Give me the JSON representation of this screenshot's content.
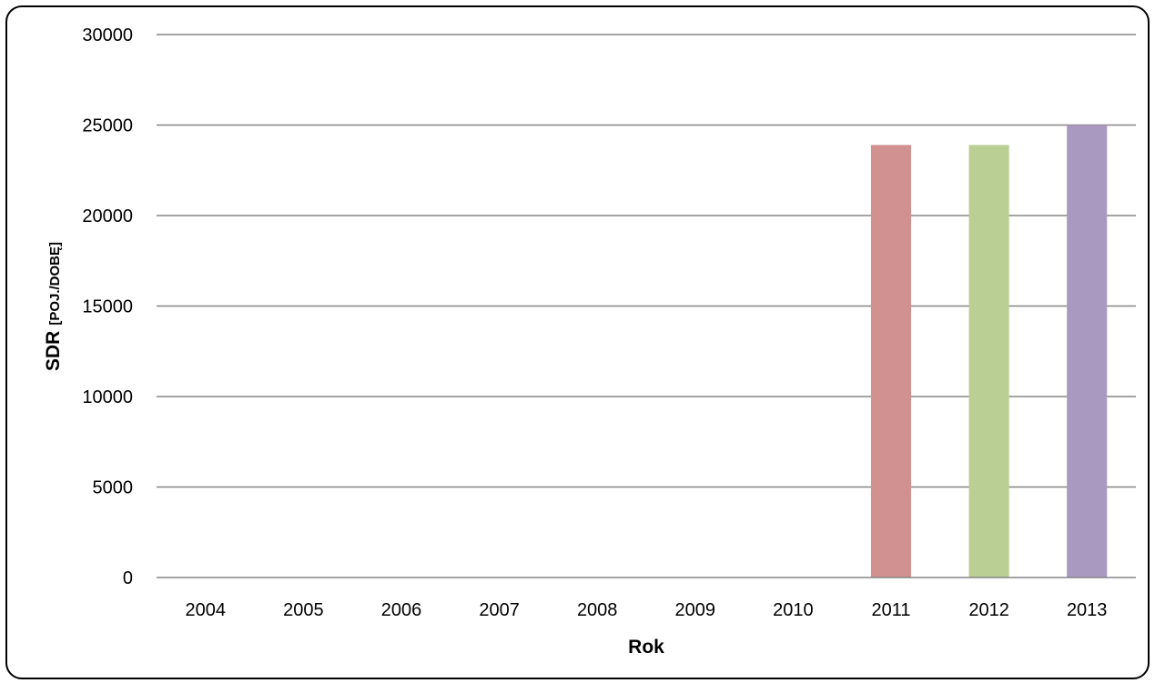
{
  "chart_data": {
    "type": "bar",
    "title": "",
    "xlabel": "Rok",
    "ylabel": "SDR",
    "ylabel_unit": "[POJ./DOBĘ]",
    "categories": [
      "2004",
      "2005",
      "2006",
      "2007",
      "2008",
      "2009",
      "2010",
      "2011",
      "2012",
      "2013"
    ],
    "values": [
      0,
      0,
      0,
      0,
      0,
      0,
      0,
      23900,
      23900,
      25000
    ],
    "colors": [
      "#d19190",
      "#d19190",
      "#d19190",
      "#d19190",
      "#d19190",
      "#d19190",
      "#d19190",
      "#d19190",
      "#b9cf94",
      "#a999c0"
    ],
    "ylim": [
      0,
      30000
    ],
    "yticks": [
      "0",
      "5000",
      "10000",
      "15000",
      "20000",
      "25000",
      "30000"
    ],
    "grid": true,
    "legend": "none"
  }
}
